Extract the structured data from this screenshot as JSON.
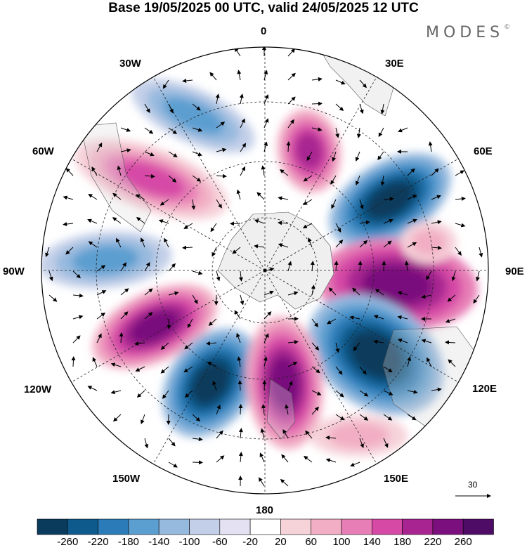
{
  "title": "Base 19/05/2025 00 UTC, valid 24/05/2025 12 UTC",
  "logo": "MODES",
  "logo_mark": "©",
  "longitude_labels": {
    "lon_0": "0",
    "lon_30e": "30E",
    "lon_60e": "60E",
    "lon_90e": "90E",
    "lon_120e": "120E",
    "lon_150e": "150E",
    "lon_180": "180",
    "lon_150w": "150W",
    "lon_120w": "120W",
    "lon_90w": "90W",
    "lon_60w": "60W",
    "lon_30w": "30W"
  },
  "reference_vector": "30",
  "colorbar": {
    "labels": [
      "-260",
      "-220",
      "-180",
      "-140",
      "-100",
      "-60",
      "-20",
      "20",
      "60",
      "100",
      "140",
      "180",
      "220",
      "260"
    ],
    "colors": [
      "#0b3b5c",
      "#0f5a8c",
      "#2b7bb8",
      "#5b9ed0",
      "#96b9de",
      "#c3cfe8",
      "#e4e2f2",
      "#ffffff",
      "#f6d2d9",
      "#f2aec4",
      "#e77fb6",
      "#d64aa6",
      "#a82591",
      "#7a0f7d",
      "#4f0c66"
    ]
  },
  "colors": {
    "land": "#d6d6d6",
    "antarctica": "#efefef",
    "grid": "#222222"
  }
}
